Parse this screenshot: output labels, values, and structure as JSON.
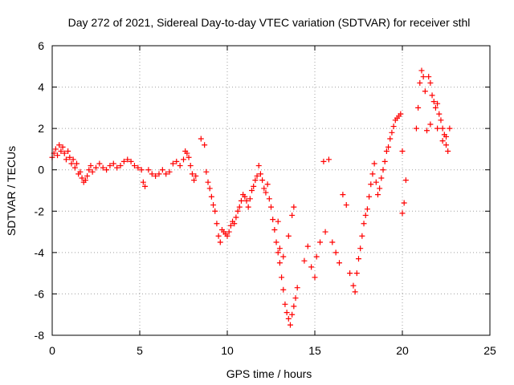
{
  "chart_data": {
    "type": "scatter",
    "title": "Day 272 of 2021, Sidereal Day-to-day VTEC variation (SDTVAR) for receiver sthl",
    "xlabel": "GPS time / hours",
    "ylabel": "SDTVAR / TECUs",
    "xlim": [
      0,
      25
    ],
    "ylim": [
      -8,
      6
    ],
    "xticks": [
      0,
      5,
      10,
      15,
      20,
      25
    ],
    "yticks": [
      -8,
      -6,
      -4,
      -2,
      0,
      2,
      4,
      6
    ],
    "xtick_labels": [
      "0",
      "5",
      "10",
      "15",
      "20",
      "25"
    ],
    "ytick_labels": [
      "-8",
      "-6",
      "-4",
      "-2",
      "0",
      "2",
      "4",
      "6"
    ],
    "grid": true,
    "marker": "+",
    "marker_color": "#ff0000",
    "series": [
      {
        "name": "SDTVAR",
        "points": [
          [
            0.0,
            0.6
          ],
          [
            0.1,
            0.8
          ],
          [
            0.2,
            1.0
          ],
          [
            0.3,
            0.7
          ],
          [
            0.4,
            1.2
          ],
          [
            0.5,
            0.9
          ],
          [
            0.6,
            1.1
          ],
          [
            0.7,
            0.8
          ],
          [
            0.8,
            0.5
          ],
          [
            0.9,
            0.9
          ],
          [
            1.0,
            0.6
          ],
          [
            1.1,
            0.3
          ],
          [
            1.2,
            0.5
          ],
          [
            1.3,
            0.1
          ],
          [
            1.4,
            0.3
          ],
          [
            1.5,
            -0.2
          ],
          [
            1.6,
            -0.1
          ],
          [
            1.7,
            -0.4
          ],
          [
            1.8,
            -0.6
          ],
          [
            1.9,
            -0.5
          ],
          [
            2.0,
            -0.3
          ],
          [
            2.1,
            0.0
          ],
          [
            2.2,
            0.2
          ],
          [
            2.3,
            -0.1
          ],
          [
            2.5,
            0.1
          ],
          [
            2.7,
            0.3
          ],
          [
            2.9,
            0.1
          ],
          [
            3.1,
            0.0
          ],
          [
            3.3,
            0.2
          ],
          [
            3.5,
            0.3
          ],
          [
            3.7,
            0.1
          ],
          [
            3.9,
            0.2
          ],
          [
            4.1,
            0.4
          ],
          [
            4.3,
            0.5
          ],
          [
            4.5,
            0.4
          ],
          [
            4.7,
            0.2
          ],
          [
            4.9,
            0.1
          ],
          [
            5.1,
            0.0
          ],
          [
            5.2,
            -0.6
          ],
          [
            5.3,
            -0.8
          ],
          [
            5.5,
            0.0
          ],
          [
            5.7,
            -0.2
          ],
          [
            5.9,
            -0.3
          ],
          [
            6.1,
            -0.2
          ],
          [
            6.3,
            0.0
          ],
          [
            6.5,
            -0.2
          ],
          [
            6.7,
            -0.1
          ],
          [
            6.9,
            0.3
          ],
          [
            7.1,
            0.4
          ],
          [
            7.3,
            0.2
          ],
          [
            7.5,
            0.5
          ],
          [
            7.6,
            0.9
          ],
          [
            7.7,
            0.8
          ],
          [
            7.8,
            0.6
          ],
          [
            7.9,
            0.2
          ],
          [
            8.0,
            -0.2
          ],
          [
            8.1,
            -0.5
          ],
          [
            8.2,
            -0.3
          ],
          [
            8.5,
            1.5
          ],
          [
            8.7,
            1.2
          ],
          [
            8.8,
            -0.1
          ],
          [
            8.9,
            -0.6
          ],
          [
            9.0,
            -0.9
          ],
          [
            9.1,
            -1.3
          ],
          [
            9.2,
            -1.7
          ],
          [
            9.3,
            -2.0
          ],
          [
            9.4,
            -2.6
          ],
          [
            9.5,
            -3.2
          ],
          [
            9.6,
            -3.5
          ],
          [
            9.7,
            -2.9
          ],
          [
            9.8,
            -3.0
          ],
          [
            9.9,
            -3.1
          ],
          [
            10.0,
            -3.2
          ],
          [
            10.1,
            -3.0
          ],
          [
            10.2,
            -2.7
          ],
          [
            10.3,
            -2.5
          ],
          [
            10.4,
            -2.6
          ],
          [
            10.5,
            -2.3
          ],
          [
            10.6,
            -2.0
          ],
          [
            10.7,
            -1.8
          ],
          [
            10.8,
            -1.5
          ],
          [
            10.9,
            -1.2
          ],
          [
            11.0,
            -1.3
          ],
          [
            11.1,
            -1.5
          ],
          [
            11.2,
            -1.8
          ],
          [
            11.3,
            -1.4
          ],
          [
            11.4,
            -1.0
          ],
          [
            11.5,
            -0.8
          ],
          [
            11.6,
            -0.5
          ],
          [
            11.7,
            -0.3
          ],
          [
            11.8,
            0.2
          ],
          [
            11.9,
            -0.2
          ],
          [
            12.0,
            -0.5
          ],
          [
            12.1,
            -0.9
          ],
          [
            12.2,
            -1.1
          ],
          [
            12.3,
            -0.7
          ],
          [
            12.4,
            -1.4
          ],
          [
            12.5,
            -1.8
          ],
          [
            12.6,
            -2.4
          ],
          [
            12.7,
            -2.9
          ],
          [
            12.8,
            -3.5
          ],
          [
            12.9,
            -4.0
          ],
          [
            13.0,
            -4.5
          ],
          [
            13.1,
            -5.2
          ],
          [
            13.2,
            -5.8
          ],
          [
            13.3,
            -6.5
          ],
          [
            13.4,
            -6.9
          ],
          [
            13.5,
            -7.2
          ],
          [
            13.6,
            -7.5
          ],
          [
            13.7,
            -7.0
          ],
          [
            13.8,
            -6.6
          ],
          [
            13.9,
            -6.2
          ],
          [
            14.0,
            -5.7
          ],
          [
            13.5,
            -3.2
          ],
          [
            13.7,
            -2.2
          ],
          [
            13.8,
            -1.8
          ],
          [
            14.4,
            -4.4
          ],
          [
            14.6,
            -3.7
          ],
          [
            14.8,
            -4.7
          ],
          [
            15.0,
            -5.2
          ],
          [
            15.1,
            -4.2
          ],
          [
            15.3,
            -3.5
          ],
          [
            15.5,
            0.4
          ],
          [
            15.6,
            -3.0
          ],
          [
            15.8,
            0.5
          ],
          [
            16.0,
            -3.5
          ],
          [
            16.2,
            -4.0
          ],
          [
            16.4,
            -4.5
          ],
          [
            16.6,
            -1.2
          ],
          [
            16.8,
            -1.7
          ],
          [
            17.0,
            -5.0
          ],
          [
            17.2,
            -5.6
          ],
          [
            17.3,
            -5.9
          ],
          [
            17.4,
            -5.0
          ],
          [
            17.5,
            -4.3
          ],
          [
            17.6,
            -3.8
          ],
          [
            17.7,
            -3.2
          ],
          [
            17.8,
            -2.6
          ],
          [
            17.9,
            -2.2
          ],
          [
            18.0,
            -1.9
          ],
          [
            18.1,
            -1.3
          ],
          [
            18.2,
            -0.7
          ],
          [
            18.3,
            -0.2
          ],
          [
            18.4,
            0.3
          ],
          [
            18.5,
            -0.6
          ],
          [
            18.6,
            -1.2
          ],
          [
            18.7,
            -0.9
          ],
          [
            18.8,
            -0.4
          ],
          [
            18.9,
            0.0
          ],
          [
            19.0,
            0.4
          ],
          [
            19.1,
            0.9
          ],
          [
            19.2,
            1.1
          ],
          [
            19.3,
            1.5
          ],
          [
            19.4,
            1.8
          ],
          [
            19.5,
            2.1
          ],
          [
            19.6,
            2.4
          ],
          [
            19.7,
            2.5
          ],
          [
            19.8,
            2.6
          ],
          [
            19.9,
            2.7
          ],
          [
            20.0,
            -2.1
          ],
          [
            20.1,
            -1.6
          ],
          [
            20.0,
            0.9
          ],
          [
            20.2,
            -0.5
          ],
          [
            20.8,
            2.0
          ],
          [
            20.9,
            3.0
          ],
          [
            21.0,
            4.2
          ],
          [
            21.1,
            4.8
          ],
          [
            21.2,
            4.5
          ],
          [
            21.3,
            3.8
          ],
          [
            21.5,
            4.5
          ],
          [
            21.6,
            4.2
          ],
          [
            21.7,
            3.6
          ],
          [
            21.8,
            3.3
          ],
          [
            21.9,
            3.0
          ],
          [
            22.0,
            3.2
          ],
          [
            22.1,
            2.7
          ],
          [
            22.2,
            2.4
          ],
          [
            22.3,
            2.0
          ],
          [
            22.4,
            1.7
          ],
          [
            22.5,
            1.2
          ],
          [
            22.6,
            0.9
          ],
          [
            22.7,
            2.0
          ],
          [
            21.4,
            1.9
          ],
          [
            21.6,
            2.2
          ],
          [
            22.0,
            2.0
          ],
          [
            22.3,
            1.4
          ],
          [
            22.5,
            1.6
          ],
          [
            13.2,
            -4.2
          ],
          [
            12.9,
            -2.5
          ],
          [
            13.0,
            -3.8
          ]
        ]
      }
    ]
  }
}
